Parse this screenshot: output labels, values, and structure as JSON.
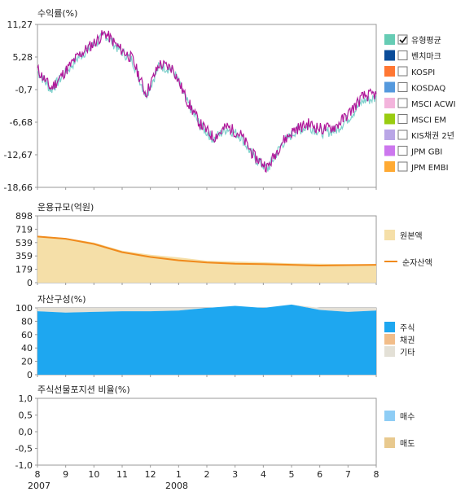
{
  "chart_data": [
    {
      "type": "line",
      "title": "수익률(%)",
      "ylim": [
        -18.66,
        11.27
      ],
      "y_ticks": [
        "11,27",
        "5,28",
        "-0,7",
        "-6,68",
        "-12,67",
        "-18,66"
      ],
      "x": [
        0.0,
        0.5,
        1.0,
        1.5,
        2.0,
        2.5,
        3.0,
        3.5,
        4.0,
        4.5,
        5.0,
        5.5,
        6.0,
        6.5,
        7.0,
        7.5,
        8.0,
        8.5,
        9.0,
        9.5,
        10.0,
        10.5,
        11.0,
        11.5,
        12.0,
        12.5
      ],
      "series": [
        {
          "name": "유형평균",
          "color": "#B0189A",
          "values": [
            3.0,
            -0.5,
            2.5,
            5.5,
            7.5,
            9.7,
            7.0,
            5.0,
            -1.5,
            4.0,
            3.2,
            -2.5,
            -7.0,
            -9.5,
            -7.5,
            -9.0,
            -13.0,
            -15.0,
            -10.5,
            -8.0,
            -7.0,
            -8.0,
            -7.5,
            -5.0,
            -2.0,
            -1.5
          ]
        },
        {
          "name": "유형평균 (band)",
          "color": "#7FD1CC",
          "values": [
            2.7,
            -0.8,
            2.2,
            5.2,
            7.2,
            9.4,
            6.7,
            4.7,
            -1.8,
            3.7,
            2.9,
            -2.8,
            -7.3,
            -9.8,
            -7.8,
            -9.3,
            -13.3,
            -15.3,
            -10.8,
            -8.4,
            -7.5,
            -8.6,
            -8.2,
            -5.8,
            -2.8,
            -2.3
          ]
        }
      ],
      "legend": [
        {
          "label": "유형평균",
          "color": "#66CCB4",
          "checked": true
        },
        {
          "label": "벤치마크",
          "color": "#0A4C99",
          "checked": false
        },
        {
          "label": "KOSPI",
          "color": "#FF7733",
          "checked": false
        },
        {
          "label": "KOSDAQ",
          "color": "#5599DD",
          "checked": false
        },
        {
          "label": "MSCI ACWI",
          "color": "#F3B4DC",
          "checked": false
        },
        {
          "label": "MSCI EM",
          "color": "#99CC11",
          "checked": false
        },
        {
          "label": "KIS채권 2년",
          "color": "#B9A6E6",
          "checked": false
        },
        {
          "label": "JPM GBI",
          "color": "#CC77EE",
          "checked": false
        },
        {
          "label": "JPM EMBI",
          "color": "#FFAA33",
          "checked": false
        }
      ]
    },
    {
      "type": "area",
      "title": "운용규모(억원)",
      "ylim": [
        0,
        898
      ],
      "y_ticks": [
        "898",
        "719",
        "539",
        "359",
        "179",
        "0"
      ],
      "x": [
        0,
        1,
        2,
        3,
        4,
        5,
        6,
        7,
        8,
        9,
        10,
        11,
        12
      ],
      "series": [
        {
          "name": "원본액",
          "color": "#F5DFA8",
          "values": [
            630,
            600,
            540,
            430,
            375,
            340,
            295,
            285,
            275,
            260,
            255,
            250,
            248
          ]
        },
        {
          "name": "순자산액",
          "color": "#F08A1C",
          "values": [
            620,
            590,
            520,
            410,
            345,
            300,
            270,
            255,
            250,
            240,
            230,
            235,
            240
          ]
        }
      ]
    },
    {
      "type": "area",
      "title": "자산구성(%)",
      "ylim": [
        0,
        100
      ],
      "y_ticks": [
        "100",
        "80",
        "60",
        "40",
        "20",
        "0"
      ],
      "x": [
        0,
        1,
        2,
        3,
        4,
        5,
        6,
        7,
        8,
        9,
        10,
        11,
        12
      ],
      "series": [
        {
          "name": "주식",
          "color": "#1EA7F0",
          "values": [
            95,
            93,
            94,
            95,
            95,
            96,
            100,
            103,
            100,
            105,
            97,
            94,
            96
          ]
        },
        {
          "name": "채권",
          "color": "#F2BD89",
          "values": [
            0,
            0,
            0,
            0,
            0,
            0,
            0,
            0,
            0,
            0,
            0,
            0,
            0
          ]
        },
        {
          "name": "기타",
          "color": "#E3E0D6",
          "values": [
            5,
            7,
            6,
            5,
            5,
            4,
            0,
            0,
            0,
            0,
            3,
            6,
            4
          ]
        }
      ]
    },
    {
      "type": "bar",
      "title": "주식선물포지션 비율(%)",
      "ylim": [
        -1.0,
        1.0
      ],
      "y_ticks": [
        "1,0",
        "0,5",
        "0,0",
        "-0,5",
        "-1,0"
      ],
      "x_ticks": [
        "8",
        "9",
        "10",
        "11",
        "12",
        "1",
        "2",
        "3",
        "4",
        "5",
        "6",
        "7",
        "8"
      ],
      "x_year_labels": [
        "2007",
        "2008"
      ],
      "series": [
        {
          "name": "매수",
          "color": "#8ECDF5",
          "values": []
        },
        {
          "name": "매도",
          "color": "#E8C98E",
          "values": []
        }
      ]
    }
  ]
}
